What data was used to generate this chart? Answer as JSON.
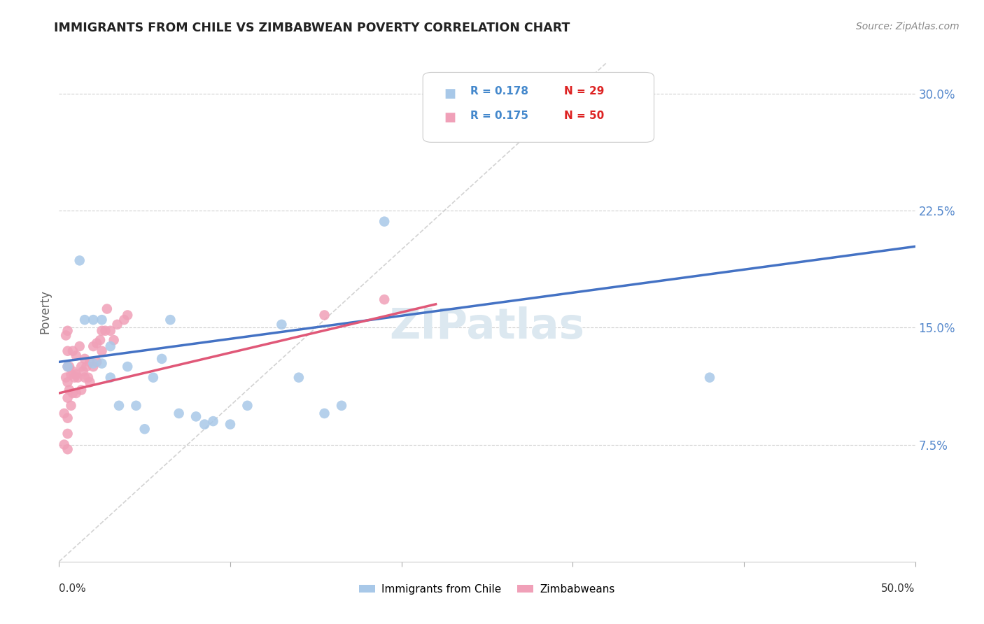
{
  "title": "IMMIGRANTS FROM CHILE VS ZIMBABWEAN POVERTY CORRELATION CHART",
  "source": "Source: ZipAtlas.com",
  "ylabel": "Poverty",
  "ytick_labels": [
    "7.5%",
    "15.0%",
    "22.5%",
    "30.0%"
  ],
  "ytick_values": [
    0.075,
    0.15,
    0.225,
    0.3
  ],
  "xlim": [
    0.0,
    0.5
  ],
  "ylim": [
    0.0,
    0.32
  ],
  "legend_r_blue": "R = 0.178",
  "legend_n_blue": "N = 29",
  "legend_r_pink": "R = 0.175",
  "legend_n_pink": "N = 50",
  "legend_label_blue": "Immigrants from Chile",
  "legend_label_pink": "Zimbabweans",
  "blue_color": "#a8c8e8",
  "pink_color": "#f0a0b8",
  "blue_line_color": "#4472c4",
  "pink_line_color": "#e05878",
  "diag_line_color": "#c8c8c8",
  "watermark_color": "#dce8f0",
  "blue_x": [
    0.005,
    0.012,
    0.015,
    0.02,
    0.02,
    0.025,
    0.025,
    0.03,
    0.03,
    0.035,
    0.04,
    0.045,
    0.05,
    0.055,
    0.06,
    0.065,
    0.07,
    0.08,
    0.09,
    0.1,
    0.11,
    0.13,
    0.14,
    0.155,
    0.165,
    0.19,
    0.38,
    0.27,
    0.085
  ],
  "blue_y": [
    0.125,
    0.193,
    0.155,
    0.155,
    0.127,
    0.155,
    0.127,
    0.138,
    0.118,
    0.1,
    0.125,
    0.1,
    0.085,
    0.118,
    0.13,
    0.155,
    0.095,
    0.093,
    0.09,
    0.088,
    0.1,
    0.152,
    0.118,
    0.095,
    0.1,
    0.218,
    0.118,
    0.28,
    0.088
  ],
  "pink_x": [
    0.003,
    0.003,
    0.004,
    0.004,
    0.005,
    0.005,
    0.005,
    0.005,
    0.005,
    0.005,
    0.005,
    0.005,
    0.006,
    0.006,
    0.007,
    0.007,
    0.008,
    0.008,
    0.008,
    0.009,
    0.01,
    0.01,
    0.01,
    0.011,
    0.012,
    0.013,
    0.013,
    0.014,
    0.015,
    0.015,
    0.016,
    0.017,
    0.018,
    0.018,
    0.02,
    0.02,
    0.022,
    0.022,
    0.024,
    0.025,
    0.025,
    0.027,
    0.028,
    0.03,
    0.032,
    0.034,
    0.038,
    0.04,
    0.155,
    0.19
  ],
  "pink_y": [
    0.095,
    0.075,
    0.145,
    0.118,
    0.148,
    0.135,
    0.125,
    0.115,
    0.105,
    0.092,
    0.082,
    0.072,
    0.125,
    0.11,
    0.12,
    0.1,
    0.135,
    0.122,
    0.108,
    0.118,
    0.132,
    0.12,
    0.108,
    0.118,
    0.138,
    0.125,
    0.11,
    0.122,
    0.13,
    0.118,
    0.125,
    0.118,
    0.128,
    0.115,
    0.138,
    0.125,
    0.14,
    0.128,
    0.142,
    0.148,
    0.135,
    0.148,
    0.162,
    0.148,
    0.142,
    0.152,
    0.155,
    0.158,
    0.158,
    0.168
  ],
  "blue_trendline_x": [
    0.0,
    0.5
  ],
  "blue_trendline_y": [
    0.128,
    0.202
  ],
  "pink_trendline_x": [
    0.0,
    0.22
  ],
  "pink_trendline_y": [
    0.108,
    0.165
  ]
}
